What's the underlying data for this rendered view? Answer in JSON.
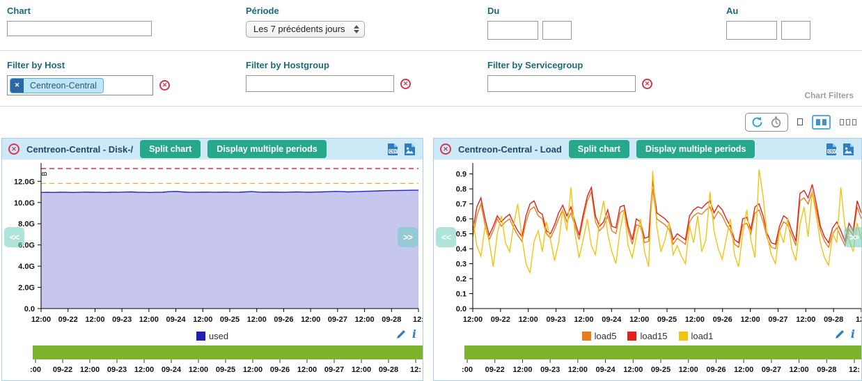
{
  "ui": {
    "chart_filters_caption": "Chart Filters",
    "nav_prev": "<<",
    "nav_next": ">>",
    "csv_label": "CSV",
    "info_glyph": "i",
    "icons": {
      "close_x": "✕",
      "chip_remove_x": "✕"
    },
    "toolbar_icons": [
      "refresh-icon",
      "timer-icon",
      "one-column-layout-icon",
      "two-column-layout-icon",
      "three-column-layout-icon"
    ],
    "colors": {
      "accent_teal": "#27a88a",
      "header_bg": "#cde9f7",
      "panel_border": "#a9cfe8",
      "label_teal": "#1b6b7b",
      "title_navy": "#1f4866",
      "danger_red": "#d0384e",
      "timeline_green": "#7db32d",
      "icon_blue": "#2d7fc1"
    }
  },
  "filters": {
    "chart_label": "Chart",
    "chart_value": "",
    "periode_label": "Période",
    "periode_value": "Les 7 précédents jours",
    "du_label": "Du",
    "du_date_value": "",
    "du_time_value": "",
    "au_label": "Au",
    "au_date_value": "",
    "au_time_value": "",
    "host_label": "Filter by Host",
    "host_chip": "Centreon-Central",
    "hostgroup_label": "Filter by Hostgroup",
    "hostgroup_value": "",
    "servicegroup_label": "Filter by Servicegroup",
    "servicegroup_value": ""
  },
  "charts": [
    {
      "title": "Centreon-Central - Disk-/",
      "split_button": "Split chart",
      "periods_button": "Display multiple periods"
    },
    {
      "title": "Centreon-Central - Load",
      "split_button": "Split chart",
      "periods_button": "Display multiple periods"
    }
  ],
  "chart_data": [
    {
      "type": "area",
      "title": "Centreon-Central - Disk-/",
      "ylabel": "B",
      "ylim": [
        0,
        13.4
      ],
      "yticks": [
        {
          "v": 0,
          "label": "0.0"
        },
        {
          "v": 2,
          "label": "2.0G"
        },
        {
          "v": 4,
          "label": "4.0G"
        },
        {
          "v": 6,
          "label": "6.0G"
        },
        {
          "v": 8,
          "label": "8.0G"
        },
        {
          "v": 10,
          "label": "10.0G"
        },
        {
          "v": 12,
          "label": "12.0G"
        }
      ],
      "xticks": [
        "12:00",
        "09-22",
        "12:00",
        "09-23",
        "12:00",
        "09-24",
        "12:00",
        "09-25",
        "12:00",
        "09-26",
        "12:00",
        "09-27",
        "12:00",
        "09-28",
        "12:"
      ],
      "timeline_xticks": [
        ":00",
        "09-22",
        "12:00",
        "09-23",
        "12:00",
        "09-24",
        "12:00",
        "09-25",
        "12:00",
        "09-26",
        "12:00",
        "09-27",
        "12:00",
        "09-28",
        "12:"
      ],
      "thresholds": [
        {
          "name": "warning",
          "value": 11.8,
          "color": "#ffa81e"
        },
        {
          "name": "critical",
          "value": 13.2,
          "color": "#e3001b"
        }
      ],
      "series": [
        {
          "name": "used",
          "color": "#2222cc",
          "fill": "#c6c6ef",
          "values": [
            10.95,
            10.96,
            10.95,
            10.97,
            10.96,
            10.95,
            10.96,
            10.98,
            10.97,
            10.96,
            10.95,
            10.97,
            10.96,
            10.98,
            11.0,
            10.97,
            10.96,
            10.95,
            10.96,
            10.97,
            11.02,
            11.05,
            11.0,
            10.97,
            10.96,
            10.97,
            10.98,
            10.96,
            10.97,
            10.98,
            10.96,
            10.97,
            11.0,
            11.03,
            10.98,
            10.97,
            10.98,
            10.97,
            10.96,
            10.98,
            11.0,
            10.98,
            10.97,
            10.99,
            11.0,
            11.02,
            11.05,
            11.03,
            11.0,
            11.02,
            11.04,
            11.06,
            11.08,
            11.1,
            11.12,
            11.13,
            11.14,
            11.15,
            11.16,
            11.16
          ]
        }
      ],
      "legend": [
        {
          "label": "used",
          "color": "#1f1fb4"
        }
      ]
    },
    {
      "type": "line",
      "title": "Centreon-Central - Load",
      "ylabel": "",
      "ylim": [
        0,
        0.95
      ],
      "yticks": [
        {
          "v": 0.0,
          "label": "0.0"
        },
        {
          "v": 0.1,
          "label": "0.1"
        },
        {
          "v": 0.2,
          "label": "0.2"
        },
        {
          "v": 0.3,
          "label": "0.3"
        },
        {
          "v": 0.4,
          "label": "0.4"
        },
        {
          "v": 0.5,
          "label": "0.5"
        },
        {
          "v": 0.6,
          "label": "0.6"
        },
        {
          "v": 0.7,
          "label": "0.7"
        },
        {
          "v": 0.8,
          "label": "0.8"
        },
        {
          "v": 0.9,
          "label": "0.9"
        }
      ],
      "xticks": [
        "12:00",
        "09-22",
        "12:00",
        "09-23",
        "12:00",
        "09-24",
        "12:00",
        "09-25",
        "12:00",
        "09-26",
        "12:00",
        "09-27",
        "12:00",
        "09-28",
        "12:"
      ],
      "timeline_xticks": [
        ":00",
        "09-22",
        "12:00",
        "09-23",
        "12:00",
        "09-24",
        "12:00",
        "09-25",
        "12:00",
        "09-26",
        "12:00",
        "09-27",
        "12:00",
        "09-28",
        "12:"
      ],
      "thresholds": [],
      "series": [
        {
          "name": "load5",
          "color": "#e87d1e",
          "fill": null,
          "values": [
            0.48,
            0.62,
            0.7,
            0.56,
            0.46,
            0.52,
            0.6,
            0.55,
            0.58,
            0.6,
            0.54,
            0.49,
            0.45,
            0.58,
            0.66,
            0.68,
            0.62,
            0.6,
            0.5,
            0.47,
            0.53,
            0.6,
            0.66,
            0.58,
            0.64,
            0.55,
            0.46,
            0.6,
            0.72,
            0.78,
            0.58,
            0.52,
            0.55,
            0.62,
            0.52,
            0.5,
            0.64,
            0.66,
            0.52,
            0.43,
            0.56,
            0.55,
            0.44,
            0.45,
            0.8,
            0.6,
            0.58,
            0.56,
            0.53,
            0.43,
            0.47,
            0.45,
            0.43,
            0.58,
            0.62,
            0.64,
            0.63,
            0.66,
            0.68,
            0.6,
            0.65,
            0.62,
            0.56,
            0.52,
            0.43,
            0.41,
            0.56,
            0.57,
            0.5,
            0.64,
            0.66,
            0.58,
            0.47,
            0.41,
            0.4,
            0.52,
            0.58,
            0.56,
            0.49,
            0.42,
            0.72,
            0.74,
            0.7,
            0.78,
            0.66,
            0.52,
            0.45,
            0.41,
            0.5,
            0.54,
            0.48,
            0.42,
            0.53,
            0.49,
            0.68,
            0.6
          ]
        },
        {
          "name": "load15",
          "color": "#e32119",
          "fill": null,
          "values": [
            0.52,
            0.68,
            0.74,
            0.6,
            0.49,
            0.55,
            0.62,
            0.58,
            0.61,
            0.63,
            0.57,
            0.52,
            0.48,
            0.62,
            0.7,
            0.72,
            0.65,
            0.63,
            0.52,
            0.5,
            0.56,
            0.64,
            0.69,
            0.62,
            0.68,
            0.58,
            0.49,
            0.63,
            0.75,
            0.81,
            0.62,
            0.55,
            0.58,
            0.66,
            0.55,
            0.54,
            0.68,
            0.69,
            0.55,
            0.46,
            0.6,
            0.58,
            0.47,
            0.48,
            0.86,
            0.64,
            0.62,
            0.6,
            0.57,
            0.46,
            0.5,
            0.48,
            0.46,
            0.62,
            0.66,
            0.68,
            0.67,
            0.7,
            0.72,
            0.64,
            0.69,
            0.66,
            0.6,
            0.55,
            0.46,
            0.44,
            0.6,
            0.61,
            0.53,
            0.68,
            0.7,
            0.62,
            0.5,
            0.44,
            0.43,
            0.55,
            0.62,
            0.6,
            0.52,
            0.45,
            0.77,
            0.79,
            0.74,
            0.83,
            0.7,
            0.55,
            0.48,
            0.44,
            0.54,
            0.58,
            0.52,
            0.45,
            0.57,
            0.52,
            0.72,
            0.64
          ]
        },
        {
          "name": "load1",
          "color": "#f1c40f",
          "fill": null,
          "values": [
            0.6,
            0.42,
            0.35,
            0.55,
            0.45,
            0.28,
            0.5,
            0.62,
            0.44,
            0.38,
            0.56,
            0.7,
            0.48,
            0.3,
            0.24,
            0.45,
            0.52,
            0.38,
            0.58,
            0.46,
            0.32,
            0.44,
            0.66,
            0.52,
            0.81,
            0.5,
            0.34,
            0.46,
            0.6,
            0.42,
            0.36,
            0.58,
            0.72,
            0.5,
            0.38,
            0.3,
            0.52,
            0.66,
            0.42,
            0.34,
            0.48,
            0.6,
            0.38,
            0.28,
            0.92,
            0.55,
            0.38,
            0.46,
            0.58,
            0.36,
            0.42,
            0.35,
            0.3,
            0.55,
            0.44,
            0.62,
            0.38,
            0.46,
            0.78,
            0.52,
            0.4,
            0.33,
            0.47,
            0.6,
            0.36,
            0.28,
            0.5,
            0.66,
            0.46,
            0.34,
            0.93,
            0.75,
            0.48,
            0.36,
            0.3,
            0.52,
            0.44,
            0.6,
            0.4,
            0.32,
            0.56,
            0.68,
            0.48,
            0.78,
            0.62,
            0.44,
            0.34,
            0.29,
            0.5,
            0.44,
            0.81,
            0.55,
            0.46,
            0.38,
            0.57,
            0.46
          ]
        }
      ],
      "legend": [
        {
          "label": "load5",
          "color": "#e87d1e"
        },
        {
          "label": "load15",
          "color": "#e32119"
        },
        {
          "label": "load1",
          "color": "#f1c40f"
        }
      ]
    }
  ]
}
